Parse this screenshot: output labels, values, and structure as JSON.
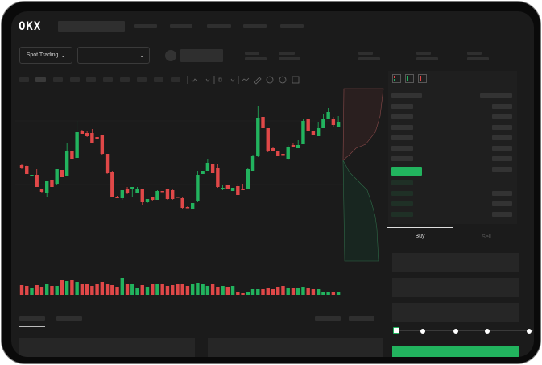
{
  "header": {
    "logo": "OKX"
  },
  "toolbar": {
    "market_selector": "Spot Trading",
    "pair_dropdown": ""
  },
  "trade_panel": {
    "tabs": [
      {
        "label": "Buy",
        "active": true
      },
      {
        "label": "Sell",
        "active": false
      }
    ],
    "leverage_slider_stops": 5,
    "slider_value": 0
  },
  "colors": {
    "up": "#22b35e",
    "down": "#e04848",
    "background": "#1b1b1b",
    "frame": "#0a0a0a"
  },
  "icons": [
    "okx-logo",
    "chevron-down-icon",
    "orderbook-both-icon",
    "orderbook-bids-icon",
    "orderbook-asks-icon",
    "indicator-icon",
    "draw-icon"
  ],
  "chart_data": {
    "type": "candlestick",
    "ohlc": [
      [
        57,
        58,
        52,
        53
      ],
      [
        56,
        57,
        46,
        46
      ],
      [
        43,
        45,
        43,
        45
      ],
      [
        45,
        52,
        30,
        30
      ],
      [
        28,
        28,
        22,
        24
      ],
      [
        22,
        37,
        17,
        37
      ],
      [
        38,
        38,
        28,
        30
      ],
      [
        34,
        52,
        33,
        52
      ],
      [
        51,
        51,
        42,
        42
      ],
      [
        44,
        84,
        44,
        75
      ],
      [
        74,
        77,
        65,
        65
      ],
      [
        66,
        112,
        66,
        98
      ],
      [
        100,
        101,
        96,
        96
      ],
      [
        97,
        99,
        92,
        93
      ],
      [
        97,
        102,
        84,
        85
      ],
      [
        92,
        92,
        90,
        90
      ],
      [
        94,
        95,
        70,
        71
      ],
      [
        71,
        71,
        46,
        47
      ],
      [
        49,
        50,
        17,
        18
      ],
      [
        18,
        19,
        16,
        16
      ],
      [
        16,
        26,
        14,
        26
      ],
      [
        28,
        30,
        21,
        22
      ],
      [
        28,
        30,
        17,
        30
      ],
      [
        23,
        30,
        22,
        28
      ],
      [
        28,
        28,
        8,
        11
      ],
      [
        11,
        15,
        10,
        15
      ],
      [
        17,
        18,
        13,
        14
      ],
      [
        14,
        26,
        14,
        25
      ],
      [
        25,
        25,
        24,
        24
      ],
      [
        27,
        28,
        14,
        15
      ],
      [
        26,
        27,
        14,
        15
      ],
      [
        18,
        18,
        17,
        17
      ],
      [
        16,
        17,
        3,
        4
      ],
      [
        5,
        6,
        4,
        4
      ],
      [
        3,
        10,
        2,
        10
      ],
      [
        12,
        50,
        11,
        45
      ],
      [
        46,
        50,
        46,
        50
      ],
      [
        50,
        65,
        50,
        60
      ],
      [
        58,
        59,
        47,
        47
      ],
      [
        54,
        59,
        29,
        30
      ],
      [
        28,
        32,
        26,
        29
      ],
      [
        32,
        32,
        27,
        27
      ],
      [
        25,
        29,
        25,
        29
      ],
      [
        31,
        34,
        20,
        20
      ],
      [
        28,
        34,
        26,
        26
      ],
      [
        28,
        54,
        27,
        52
      ],
      [
        50,
        70,
        50,
        68
      ],
      [
        68,
        131,
        67,
        115
      ],
      [
        117,
        119,
        102,
        103
      ],
      [
        103,
        103,
        73,
        75
      ],
      [
        78,
        79,
        74,
        75
      ],
      [
        75,
        75,
        68,
        69
      ],
      [
        71,
        72,
        69,
        70
      ],
      [
        65,
        82,
        64,
        80
      ],
      [
        82,
        85,
        80,
        80
      ],
      [
        78,
        88,
        78,
        82
      ],
      [
        83,
        114,
        83,
        112
      ],
      [
        114,
        114,
        99,
        100
      ],
      [
        100,
        100,
        95,
        95
      ],
      [
        93,
        110,
        93,
        103
      ],
      [
        103,
        121,
        103,
        114
      ],
      [
        114,
        128,
        114,
        123
      ],
      [
        114,
        117,
        105,
        107
      ],
      [
        105,
        118,
        105,
        111
      ]
    ],
    "volume": [
      12,
      11,
      8,
      12,
      10,
      14,
      11,
      11,
      19,
      17,
      19,
      16,
      14,
      14,
      11,
      13,
      16,
      13,
      12,
      10,
      21,
      14,
      13,
      8,
      12,
      10,
      13,
      13,
      14,
      11,
      12,
      14,
      13,
      11,
      14,
      15,
      13,
      11,
      14,
      10,
      11,
      10,
      11,
      3,
      2,
      3,
      7,
      7,
      7,
      8,
      7,
      10,
      11,
      9,
      9,
      9,
      10,
      8,
      7,
      7,
      4,
      3,
      4,
      3
    ],
    "grid": true
  }
}
